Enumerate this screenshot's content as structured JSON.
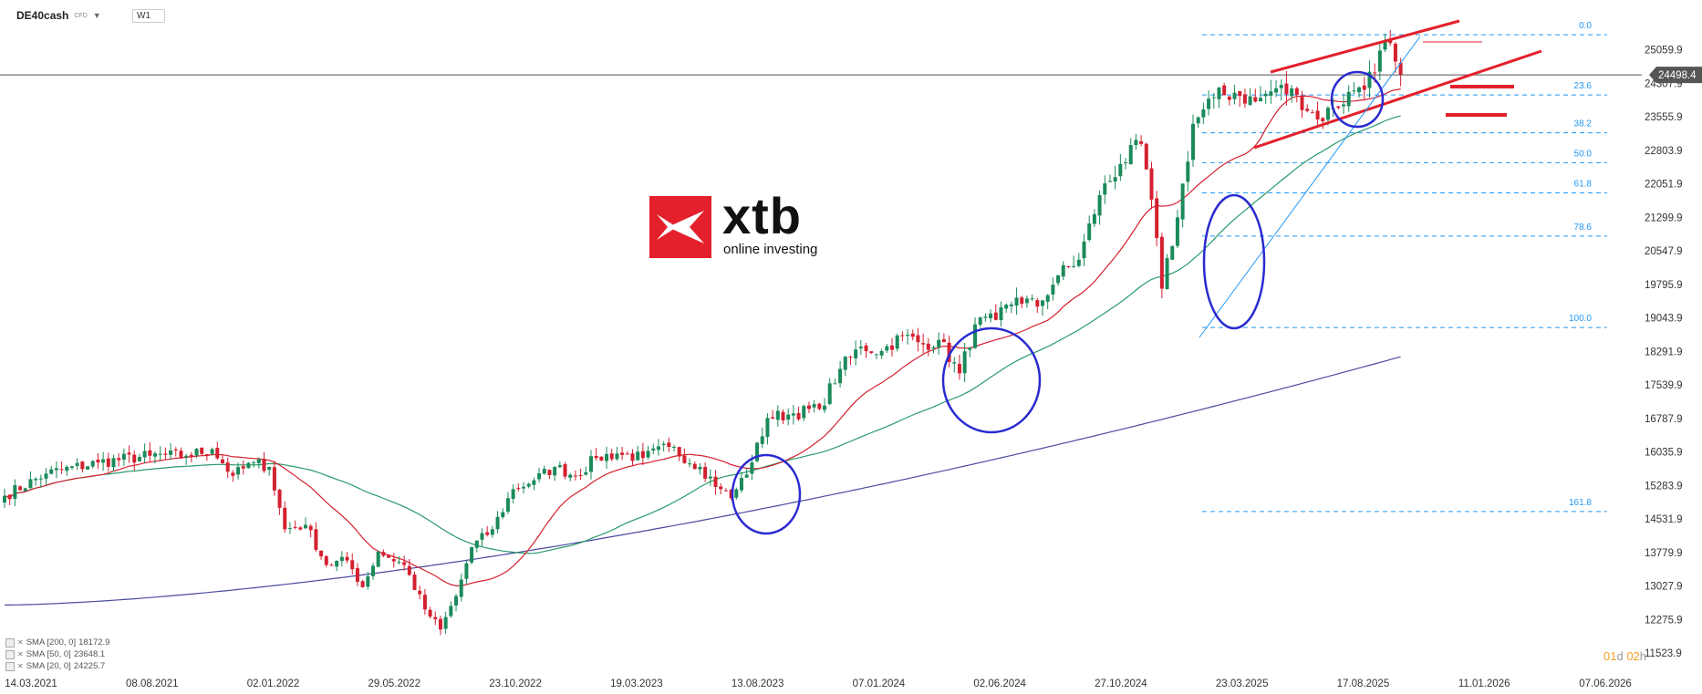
{
  "header": {
    "symbol": "DE40cash",
    "symbol_type": "CFD",
    "timeframe": "W1"
  },
  "branding": {
    "logo_text": "xtb",
    "tagline": "online investing",
    "color": "#e3202b"
  },
  "legend": [
    {
      "label": "SMA [200, 0]",
      "value": "18172.9"
    },
    {
      "label": "SMA [50, 0]",
      "value": "23648.1"
    },
    {
      "label": "SMA [20, 0]",
      "value": "24225.7"
    }
  ],
  "timer": {
    "days": "01",
    "d": "d",
    "hours": "02",
    "h": "h"
  },
  "chart_data": {
    "type": "candlestick",
    "y_ticks": [
      "25059.9",
      "24307.9",
      "23555.9",
      "22803.9",
      "22051.9",
      "21299.9",
      "20547.9",
      "19795.9",
      "19043.9",
      "18291.9",
      "17539.9",
      "16787.9",
      "16035.9",
      "15283.9",
      "14531.9",
      "13779.9",
      "13027.9",
      "12275.9",
      "11523.9"
    ],
    "ylim": [
      11523.9,
      25811.9
    ],
    "x_ticks": [
      "14.03.2021",
      "08.08.2021",
      "02.01.2022",
      "29.05.2022",
      "23.10.2022",
      "19.03.2023",
      "13.08.2023",
      "07.01.2024",
      "02.06.2024",
      "27.10.2024",
      "23.03.2025",
      "17.08.2025",
      "11.01.2026",
      "07.06.2026"
    ],
    "current_price": "24498.4",
    "fib_levels": [
      {
        "label": "0.0",
        "price": 25400
      },
      {
        "label": "23.6",
        "price": 24050
      },
      {
        "label": "38.2",
        "price": 23200
      },
      {
        "label": "50.0",
        "price": 22530
      },
      {
        "label": "61.8",
        "price": 21850
      },
      {
        "label": "78.6",
        "price": 20880
      },
      {
        "label": "100.0",
        "price": 18830
      },
      {
        "label": "161.8",
        "price": 14700
      }
    ],
    "colors": {
      "up": "#1b8a5a",
      "down": "#d42030",
      "sma20": "#d42030",
      "sma50": "#2a9a6a",
      "sma200": "#4a4aa0",
      "fib": "#2196f3",
      "annotation": "#e3202b",
      "circle": "#2a2ad0"
    },
    "anchors": [
      {
        "w": 0,
        "p": 15050
      },
      {
        "w": 8,
        "p": 15550
      },
      {
        "w": 18,
        "p": 15800
      },
      {
        "w": 28,
        "p": 15950
      },
      {
        "w": 35,
        "p": 15950
      },
      {
        "w": 40,
        "p": 16100
      },
      {
        "w": 44,
        "p": 15500
      },
      {
        "w": 48,
        "p": 15800
      },
      {
        "w": 51,
        "p": 15700
      },
      {
        "w": 54,
        "p": 14300
      },
      {
        "w": 58,
        "p": 14400
      },
      {
        "w": 62,
        "p": 13500
      },
      {
        "w": 66,
        "p": 13600
      },
      {
        "w": 69,
        "p": 13000
      },
      {
        "w": 72,
        "p": 13800
      },
      {
        "w": 77,
        "p": 13500
      },
      {
        "w": 81,
        "p": 12500
      },
      {
        "w": 84,
        "p": 12050
      },
      {
        "w": 87,
        "p": 12800
      },
      {
        "w": 90,
        "p": 13900
      },
      {
        "w": 94,
        "p": 14300
      },
      {
        "w": 98,
        "p": 15200
      },
      {
        "w": 102,
        "p": 15400
      },
      {
        "w": 106,
        "p": 15700
      },
      {
        "w": 110,
        "p": 15500
      },
      {
        "w": 114,
        "p": 15900
      },
      {
        "w": 118,
        "p": 16000
      },
      {
        "w": 123,
        "p": 15900
      },
      {
        "w": 128,
        "p": 16150
      },
      {
        "w": 134,
        "p": 15700
      },
      {
        "w": 138,
        "p": 15200
      },
      {
        "w": 140,
        "p": 15000
      },
      {
        "w": 144,
        "p": 15800
      },
      {
        "w": 147,
        "p": 16800
      },
      {
        "w": 152,
        "p": 16900
      },
      {
        "w": 157,
        "p": 17000
      },
      {
        "w": 161,
        "p": 17900
      },
      {
        "w": 165,
        "p": 18400
      },
      {
        "w": 169,
        "p": 18300
      },
      {
        "w": 173,
        "p": 18650
      },
      {
        "w": 177,
        "p": 18450
      },
      {
        "w": 180,
        "p": 18550
      },
      {
        "w": 184,
        "p": 17800
      },
      {
        "w": 187,
        "p": 18900
      },
      {
        "w": 191,
        "p": 19000
      },
      {
        "w": 195,
        "p": 19500
      },
      {
        "w": 199,
        "p": 19300
      },
      {
        "w": 203,
        "p": 20000
      },
      {
        "w": 207,
        "p": 20350
      },
      {
        "w": 211,
        "p": 21800
      },
      {
        "w": 215,
        "p": 22500
      },
      {
        "w": 219,
        "p": 22950
      },
      {
        "w": 221,
        "p": 21700
      },
      {
        "w": 223,
        "p": 19700
      },
      {
        "w": 226,
        "p": 21300
      },
      {
        "w": 229,
        "p": 23400
      },
      {
        "w": 233,
        "p": 24000
      },
      {
        "w": 237,
        "p": 24100
      },
      {
        "w": 241,
        "p": 23900
      },
      {
        "w": 245,
        "p": 24200
      },
      {
        "w": 249,
        "p": 24050
      },
      {
        "w": 253,
        "p": 23500
      },
      {
        "w": 256,
        "p": 23750
      },
      {
        "w": 260,
        "p": 24150
      },
      {
        "w": 264,
        "p": 24550
      },
      {
        "w": 266,
        "p": 25250
      },
      {
        "w": 268,
        "p": 24800
      },
      {
        "w": 269,
        "p": 24498
      }
    ]
  }
}
